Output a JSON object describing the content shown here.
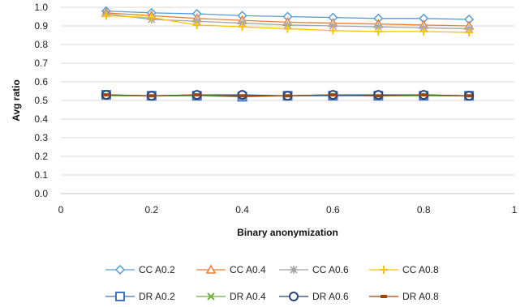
{
  "chart_data": {
    "type": "line",
    "title": "",
    "xlabel": "Binary anonymization",
    "ylabel": "Avg ratio",
    "xlim": [
      0,
      1
    ],
    "ylim": [
      0.0,
      1.0
    ],
    "xticks": [
      "0",
      "0.2",
      "0.4",
      "0.6",
      "0.8",
      "1"
    ],
    "yticks": [
      "0.0",
      "0.1",
      "0.2",
      "0.3",
      "0.4",
      "0.5",
      "0.6",
      "0.7",
      "0.8",
      "0.9",
      "1.0"
    ],
    "grid": "horizontal",
    "legend_position": "bottom",
    "x": [
      0.1,
      0.2,
      0.3,
      0.4,
      0.5,
      0.6,
      0.7,
      0.8,
      0.9
    ],
    "series": [
      {
        "name": "CC A0.2",
        "color": "#5B9BD5",
        "marker": "diamond",
        "values": [
          0.98,
          0.97,
          0.965,
          0.955,
          0.95,
          0.945,
          0.94,
          0.94,
          0.935
        ]
      },
      {
        "name": "CC A0.4",
        "color": "#ED7D31",
        "marker": "triangle",
        "values": [
          0.97,
          0.955,
          0.94,
          0.93,
          0.92,
          0.915,
          0.91,
          0.905,
          0.9
        ]
      },
      {
        "name": "CC A0.6",
        "color": "#A5A5A5",
        "marker": "star",
        "values": [
          0.965,
          0.935,
          0.925,
          0.915,
          0.905,
          0.9,
          0.895,
          0.89,
          0.885
        ]
      },
      {
        "name": "CC A0.8",
        "color": "#FFC000",
        "marker": "plus",
        "values": [
          0.955,
          0.945,
          0.905,
          0.895,
          0.885,
          0.875,
          0.87,
          0.87,
          0.865
        ]
      },
      {
        "name": "DR A0.2",
        "color": "#4472C4",
        "marker": "square",
        "values": [
          0.53,
          0.525,
          0.525,
          0.52,
          0.525,
          0.525,
          0.525,
          0.525,
          0.525
        ]
      },
      {
        "name": "DR A0.4",
        "color": "#70AD47",
        "marker": "x",
        "values": [
          0.525,
          0.525,
          0.525,
          0.525,
          0.525,
          0.53,
          0.525,
          0.525,
          0.525
        ]
      },
      {
        "name": "DR A0.6",
        "color": "#264478",
        "marker": "circle",
        "values": [
          0.53,
          0.525,
          0.53,
          0.53,
          0.525,
          0.53,
          0.53,
          0.53,
          0.525
        ]
      },
      {
        "name": "DR A0.8",
        "color": "#9E480E",
        "marker": "dash",
        "values": [
          0.53,
          0.525,
          0.53,
          0.525,
          0.525,
          0.53,
          0.525,
          0.53,
          0.525
        ]
      }
    ]
  }
}
